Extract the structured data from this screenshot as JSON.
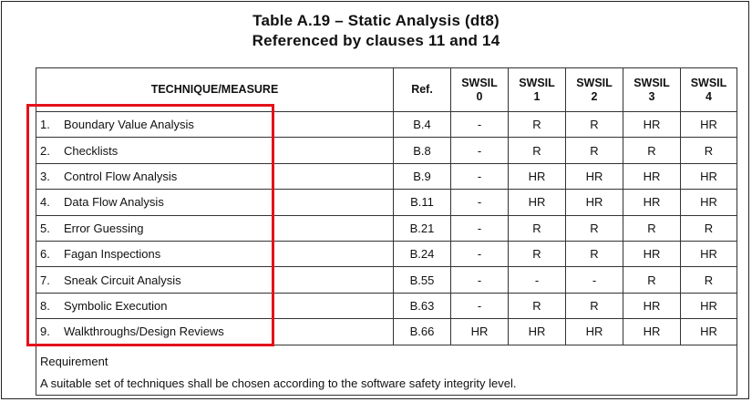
{
  "title": {
    "line1": "Table A.19 – Static Analysis (dt8)",
    "line2": "Referenced by clauses 11 and 14"
  },
  "headers": {
    "technique": "TECHNIQUE/MEASURE",
    "ref": "Ref.",
    "swsil0_a": "SWSIL",
    "swsil0_b": "0",
    "swsil1_a": "SWSIL",
    "swsil1_b": "1",
    "swsil2_a": "SWSIL",
    "swsil2_b": "2",
    "swsil3_a": "SWSIL",
    "swsil3_b": "3",
    "swsil4_a": "SWSIL",
    "swsil4_b": "4"
  },
  "rows": [
    {
      "num": "1.",
      "name": "Boundary Value Analysis",
      "ref": "B.4",
      "s0": "-",
      "s1": "R",
      "s2": "R",
      "s3": "HR",
      "s4": "HR"
    },
    {
      "num": "2.",
      "name": "Checklists",
      "ref": "B.8",
      "s0": "-",
      "s1": "R",
      "s2": "R",
      "s3": "R",
      "s4": "R"
    },
    {
      "num": "3.",
      "name": "Control Flow Analysis",
      "ref": "B.9",
      "s0": "-",
      "s1": "HR",
      "s2": "HR",
      "s3": "HR",
      "s4": "HR"
    },
    {
      "num": "4.",
      "name": "Data Flow Analysis",
      "ref": "B.11",
      "s0": "-",
      "s1": "HR",
      "s2": "HR",
      "s3": "HR",
      "s4": "HR"
    },
    {
      "num": "5.",
      "name": "Error Guessing",
      "ref": "B.21",
      "s0": "-",
      "s1": "R",
      "s2": "R",
      "s3": "R",
      "s4": "R"
    },
    {
      "num": "6.",
      "name": "Fagan Inspections",
      "ref": "B.24",
      "s0": "-",
      "s1": "R",
      "s2": "R",
      "s3": "HR",
      "s4": "HR"
    },
    {
      "num": "7.",
      "name": "Sneak Circuit Analysis",
      "ref": "B.55",
      "s0": "-",
      "s1": "-",
      "s2": "-",
      "s3": "R",
      "s4": "R"
    },
    {
      "num": "8.",
      "name": "Symbolic Execution",
      "ref": "B.63",
      "s0": "-",
      "s1": "R",
      "s2": "R",
      "s3": "HR",
      "s4": "HR"
    },
    {
      "num": "9.",
      "name": "Walkthroughs/Design Reviews",
      "ref": "B.66",
      "s0": "HR",
      "s1": "HR",
      "s2": "HR",
      "s3": "HR",
      "s4": "HR"
    }
  ],
  "requirement": {
    "label": "Requirement",
    "text": "A suitable set of techniques shall be chosen according to the software safety integrity level."
  },
  "colors": {
    "highlight_box": "#e3121b"
  }
}
